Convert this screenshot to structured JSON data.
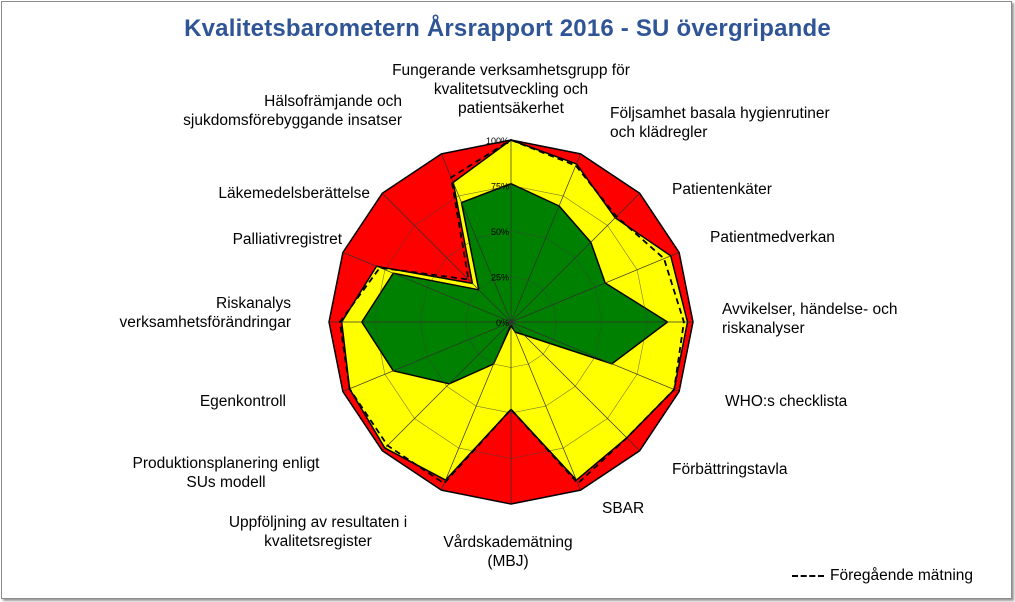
{
  "chart_data": {
    "type": "radar",
    "title": "Kvalitetsbarometern Årsrapport 2016 - SU övergripande",
    "categories": [
      "Fungerande verksamhetsgrupp för kvalitetsutveckling och patientsäkerhet",
      "Följsamhet basala hygienrutiner och klädregler",
      "Patientenkäter",
      "Patientmedverkan",
      "Avvikelser, händelse- och riskanalyser",
      "WHO:s checklista",
      "Förbättringstavla",
      "SBAR",
      "Vårdskademätning (MBJ)",
      "Uppföljning av resultaten i kvalitetsregister",
      "Produktionsplanering enligt SUs modell",
      "Egenkontroll",
      "Riskanalys verksamhetsförändringar",
      "Palliativregistret",
      "Läkemedelsberättelse",
      "Hälsofrämjande och sjukdomsförebyggande insatser"
    ],
    "radial_ticks": [
      "0%",
      "25%",
      "50%",
      "75%",
      "100%"
    ],
    "rmax": 100,
    "series": [
      {
        "name": "red",
        "color": "#ff0000",
        "values": [
          100,
          100,
          100,
          100,
          100,
          100,
          100,
          100,
          100,
          100,
          100,
          100,
          100,
          100,
          100,
          100
        ]
      },
      {
        "name": "yellow",
        "color": "#ffff00",
        "values": [
          100,
          94,
          81,
          95,
          97,
          97,
          90,
          94,
          48,
          94,
          98,
          96,
          93,
          80,
          30,
          83
        ]
      },
      {
        "name": "green",
        "color": "#008000",
        "values": [
          76,
          69,
          62,
          56,
          86,
          60,
          10,
          6,
          2,
          25,
          48,
          70,
          82,
          70,
          25,
          71
        ]
      },
      {
        "name": "Föregående mätning",
        "color": "#000000",
        "values": [
          100,
          93,
          82,
          91,
          95,
          97,
          90,
          96,
          48,
          96,
          96,
          96,
          94,
          78,
          33,
          86
        ]
      }
    ],
    "legend": {
      "label": "Föregående mätning",
      "position": "bottom-right"
    }
  }
}
